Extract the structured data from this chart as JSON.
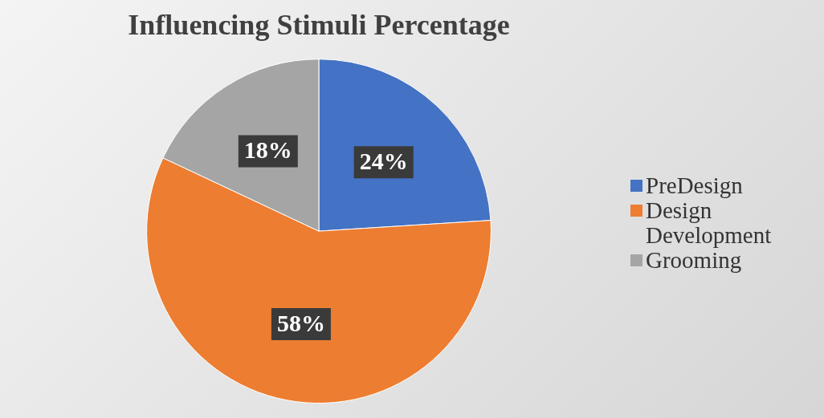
{
  "chart_data": {
    "type": "pie",
    "title": "Influencing Stimuli Percentage",
    "categories": [
      "PreDesign",
      "Design Development",
      "Grooming"
    ],
    "values": [
      24,
      58,
      18
    ],
    "colors": [
      "#4472c4",
      "#ed7d31",
      "#a5a5a5"
    ],
    "value_labels": [
      "24%",
      "58%",
      "18%"
    ],
    "legend": "right"
  }
}
